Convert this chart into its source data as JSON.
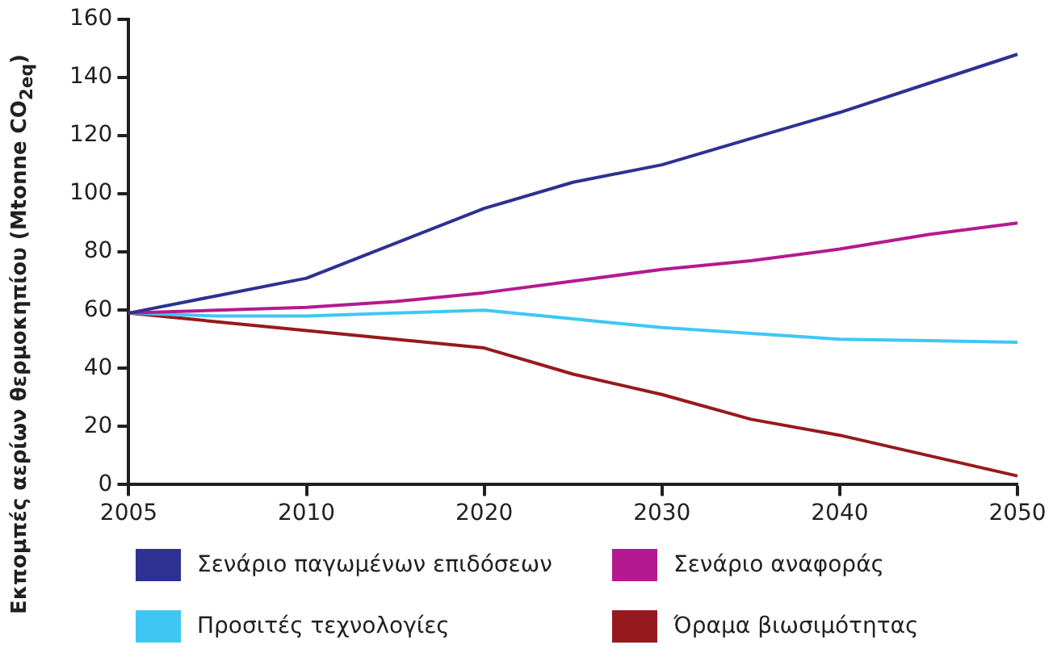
{
  "chart_data": {
    "type": "line",
    "ylabel": "Εκπομπές αερίων θερμοκηπίου (Mtonne CO$_{2eq}$)",
    "categories": [
      "2005",
      null,
      "2010",
      null,
      "2020",
      null,
      "2030",
      null,
      "2040",
      null,
      "2050"
    ],
    "ylim": [
      0,
      160
    ],
    "yticks": [
      0,
      20,
      40,
      60,
      80,
      100,
      120,
      140,
      160
    ],
    "grid": false,
    "legend": "bottom",
    "marker": "none",
    "line_style": "solid",
    "series": [
      {
        "name": "Σενάριο παγωμένων επιδόσεων",
        "color": "#2e3192",
        "values": [
          59,
          65,
          71,
          83,
          95,
          104,
          110,
          119,
          128,
          138,
          148
        ]
      },
      {
        "name": "Σενάριο αναφοράς",
        "color": "#b5198f",
        "values": [
          59,
          60,
          61,
          63,
          66,
          70,
          74,
          77,
          81,
          86,
          90
        ]
      },
      {
        "name": "Προσιτές τεχνολογίες",
        "color": "#3fc7f4",
        "values": [
          59,
          58,
          58,
          59,
          60,
          57,
          54,
          52,
          50,
          49.5,
          49
        ]
      },
      {
        "name": "Όραμα βιωσιμότητας",
        "color": "#961a1d",
        "values": [
          59,
          56,
          53,
          50,
          47,
          38,
          31,
          22.5,
          17,
          10,
          3
        ]
      }
    ]
  }
}
